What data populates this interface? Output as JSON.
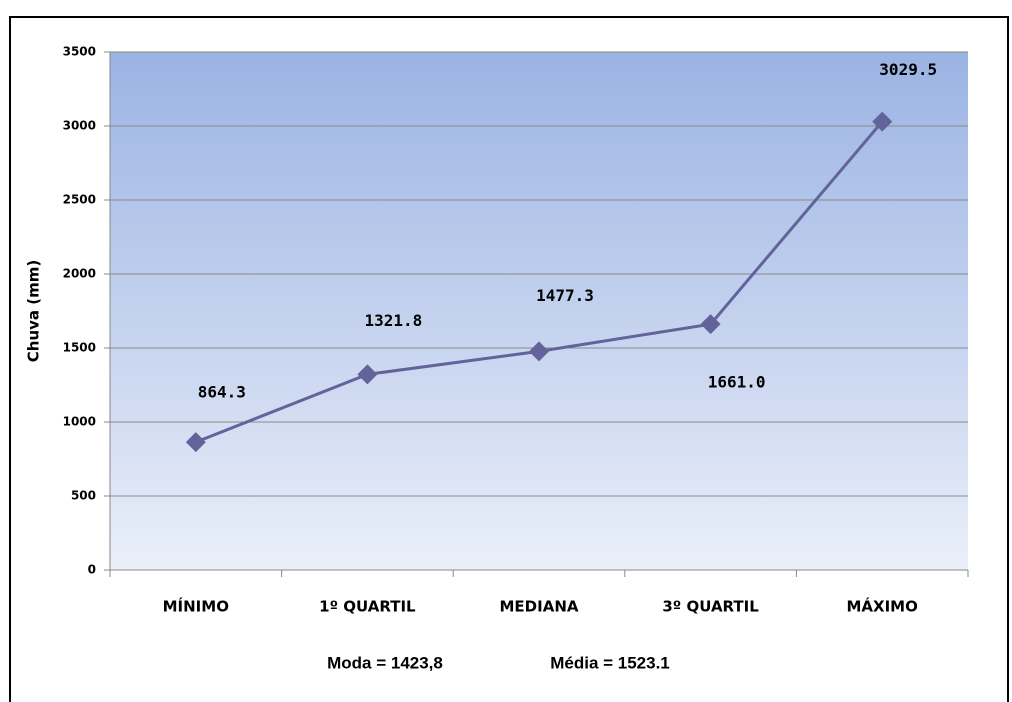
{
  "chart_data": {
    "type": "line",
    "y_label": "Chuva (mm)",
    "categories": [
      "MÍNIMO",
      "1º  QUARTIL",
      "MEDIANA",
      "3º  QUARTIL",
      "MÁXIMO"
    ],
    "values": [
      864.3,
      1321.8,
      1477.3,
      1661.0,
      3029.5
    ],
    "value_labels": [
      "864.3",
      "1321.8",
      "1477.3",
      "1661.0",
      "3029.5"
    ],
    "color": "#63639b",
    "ylim": [
      0,
      3500
    ],
    "yticks": [
      0,
      500,
      1000,
      1500,
      2000,
      2500,
      3000,
      3500
    ],
    "grid": true,
    "annotations": [
      "Moda = 1423,8",
      "Média = 1523.1"
    ]
  }
}
